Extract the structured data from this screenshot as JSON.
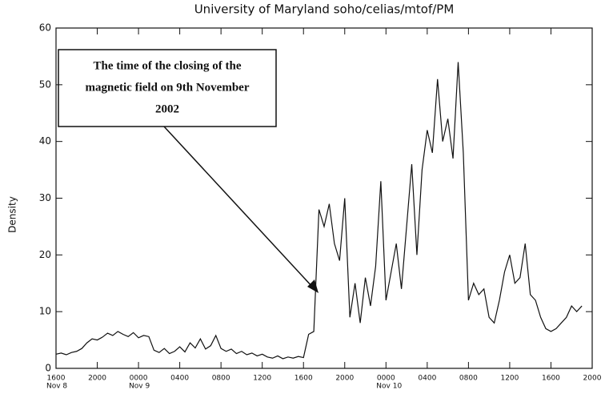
{
  "chart_data": {
    "type": "line",
    "title": "University of Maryland soho/celias/mtof/PM",
    "y_label": "Density",
    "annotation": [
      "The time of the closing of the",
      "magnetic field on 9th November",
      "2002"
    ],
    "xlim": [
      0,
      52
    ],
    "xticks": [
      {
        "value": 0,
        "label": "1600"
      },
      {
        "value": 4,
        "label": "2000"
      },
      {
        "value": 8,
        "label": "0000"
      },
      {
        "value": 12,
        "label": "0400"
      },
      {
        "value": 16,
        "label": "0800"
      },
      {
        "value": 20,
        "label": "1200"
      },
      {
        "value": 24,
        "label": "1600"
      },
      {
        "value": 28,
        "label": "2000"
      },
      {
        "value": 32,
        "label": "0000"
      },
      {
        "value": 36,
        "label": "0400"
      },
      {
        "value": 40,
        "label": "0800"
      },
      {
        "value": 44,
        "label": "1200"
      },
      {
        "value": 48,
        "label": "1600"
      },
      {
        "value": 52,
        "label": "2000"
      }
    ],
    "date_labels": [
      {
        "value": 0,
        "label": "Nov 8"
      },
      {
        "value": 8,
        "label": "Nov 9"
      },
      {
        "value": 32,
        "label": "Nov 10"
      }
    ],
    "ylim": [
      0,
      60
    ],
    "yticks": [
      0,
      10,
      20,
      30,
      40,
      50,
      60
    ],
    "color": "#111111",
    "x": [
      0,
      0.5,
      1,
      1.5,
      2,
      2.5,
      3,
      3.5,
      4,
      4.5,
      5,
      5.5,
      6,
      6.5,
      7,
      7.5,
      8,
      8.5,
      9,
      9.5,
      10,
      10.5,
      11,
      11.5,
      12,
      12.5,
      13,
      13.5,
      14,
      14.5,
      15,
      15.5,
      16,
      16.5,
      17,
      17.5,
      18,
      18.5,
      19,
      19.5,
      20,
      20.5,
      21,
      21.5,
      22,
      22.5,
      23,
      23.5,
      24,
      24.5,
      25,
      25.5,
      26,
      26.5,
      27,
      27.5,
      28,
      28.5,
      29,
      29.5,
      30,
      30.5,
      31,
      31.5,
      32,
      32.5,
      33,
      33.5,
      34,
      34.5,
      35,
      35.5,
      36,
      36.5,
      37,
      37.5,
      38,
      38.5,
      39,
      39.5,
      40,
      40.5,
      41,
      41.5,
      42,
      42.5,
      43,
      43.5,
      44,
      44.5,
      45,
      45.5,
      46,
      46.5,
      47,
      47.5,
      48,
      48.5,
      49,
      49.5,
      50,
      50.5,
      51
    ],
    "values": [
      2.5,
      2.7,
      2.4,
      2.8,
      3.0,
      3.5,
      4.5,
      5.2,
      5.0,
      5.5,
      6.2,
      5.8,
      6.5,
      6.0,
      5.6,
      6.3,
      5.4,
      5.8,
      5.6,
      3.2,
      2.8,
      3.5,
      2.6,
      3.0,
      3.8,
      2.9,
      4.5,
      3.6,
      5.2,
      3.4,
      4.0,
      5.8,
      3.5,
      3.0,
      3.4,
      2.6,
      3.0,
      2.4,
      2.7,
      2.2,
      2.5,
      2.0,
      1.8,
      2.2,
      1.7,
      2.0,
      1.8,
      2.1,
      1.9,
      6.0,
      6.5,
      28,
      25,
      29,
      22,
      19,
      30,
      9,
      15,
      8,
      16,
      11,
      18,
      33,
      12,
      17,
      22,
      14,
      25,
      36,
      20,
      35,
      42,
      38,
      51,
      40,
      44,
      37,
      54,
      38,
      12,
      15,
      13,
      14,
      9,
      8,
      12,
      17,
      20,
      15,
      16,
      22,
      13,
      12,
      9,
      7,
      6.5,
      7,
      8,
      9,
      11,
      10,
      11
    ]
  }
}
